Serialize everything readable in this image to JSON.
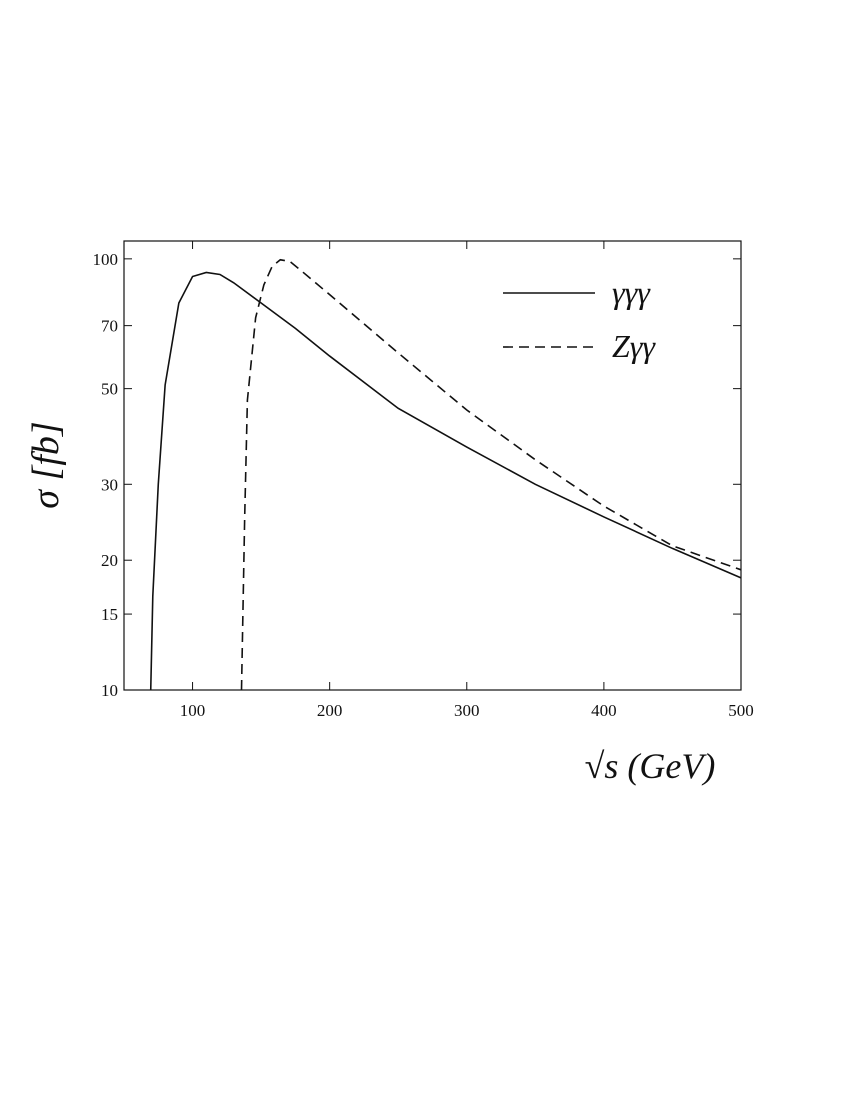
{
  "chart_data": {
    "type": "line",
    "x_label": "√s (GeV)",
    "y_label": "σ [fb]",
    "xlim": [
      50,
      500
    ],
    "xticks": [
      100,
      200,
      300,
      400,
      500
    ],
    "ylim": [
      10,
      110
    ],
    "yticks": [
      10,
      15,
      20,
      30,
      50,
      70,
      100
    ],
    "yscale": "log",
    "legend": "upper right",
    "series": [
      {
        "name": "γγγ",
        "color": "#111111",
        "dash": "solid",
        "x": [
          69.5,
          71,
          75,
          80,
          90,
          100,
          110,
          120,
          130,
          150,
          175,
          200,
          250,
          300,
          350,
          400,
          450,
          500
        ],
        "values": [
          10,
          16.5,
          30,
          51,
          79,
          91,
          93,
          92,
          88,
          79,
          69,
          59.5,
          45,
          36.6,
          30,
          25.2,
          21.3,
          18.2
        ]
      },
      {
        "name": "Zγγ",
        "color": "#111111",
        "dash": "dashed",
        "x": [
          135.7,
          138,
          140,
          146,
          152,
          158,
          164,
          171,
          179,
          200,
          250,
          300,
          350,
          400,
          450,
          500
        ],
        "values": [
          10,
          25,
          47,
          73,
          87,
          96,
          99.5,
          98.6,
          94,
          82.6,
          60.5,
          44.6,
          34.2,
          26.7,
          21.6,
          19
        ]
      }
    ]
  }
}
